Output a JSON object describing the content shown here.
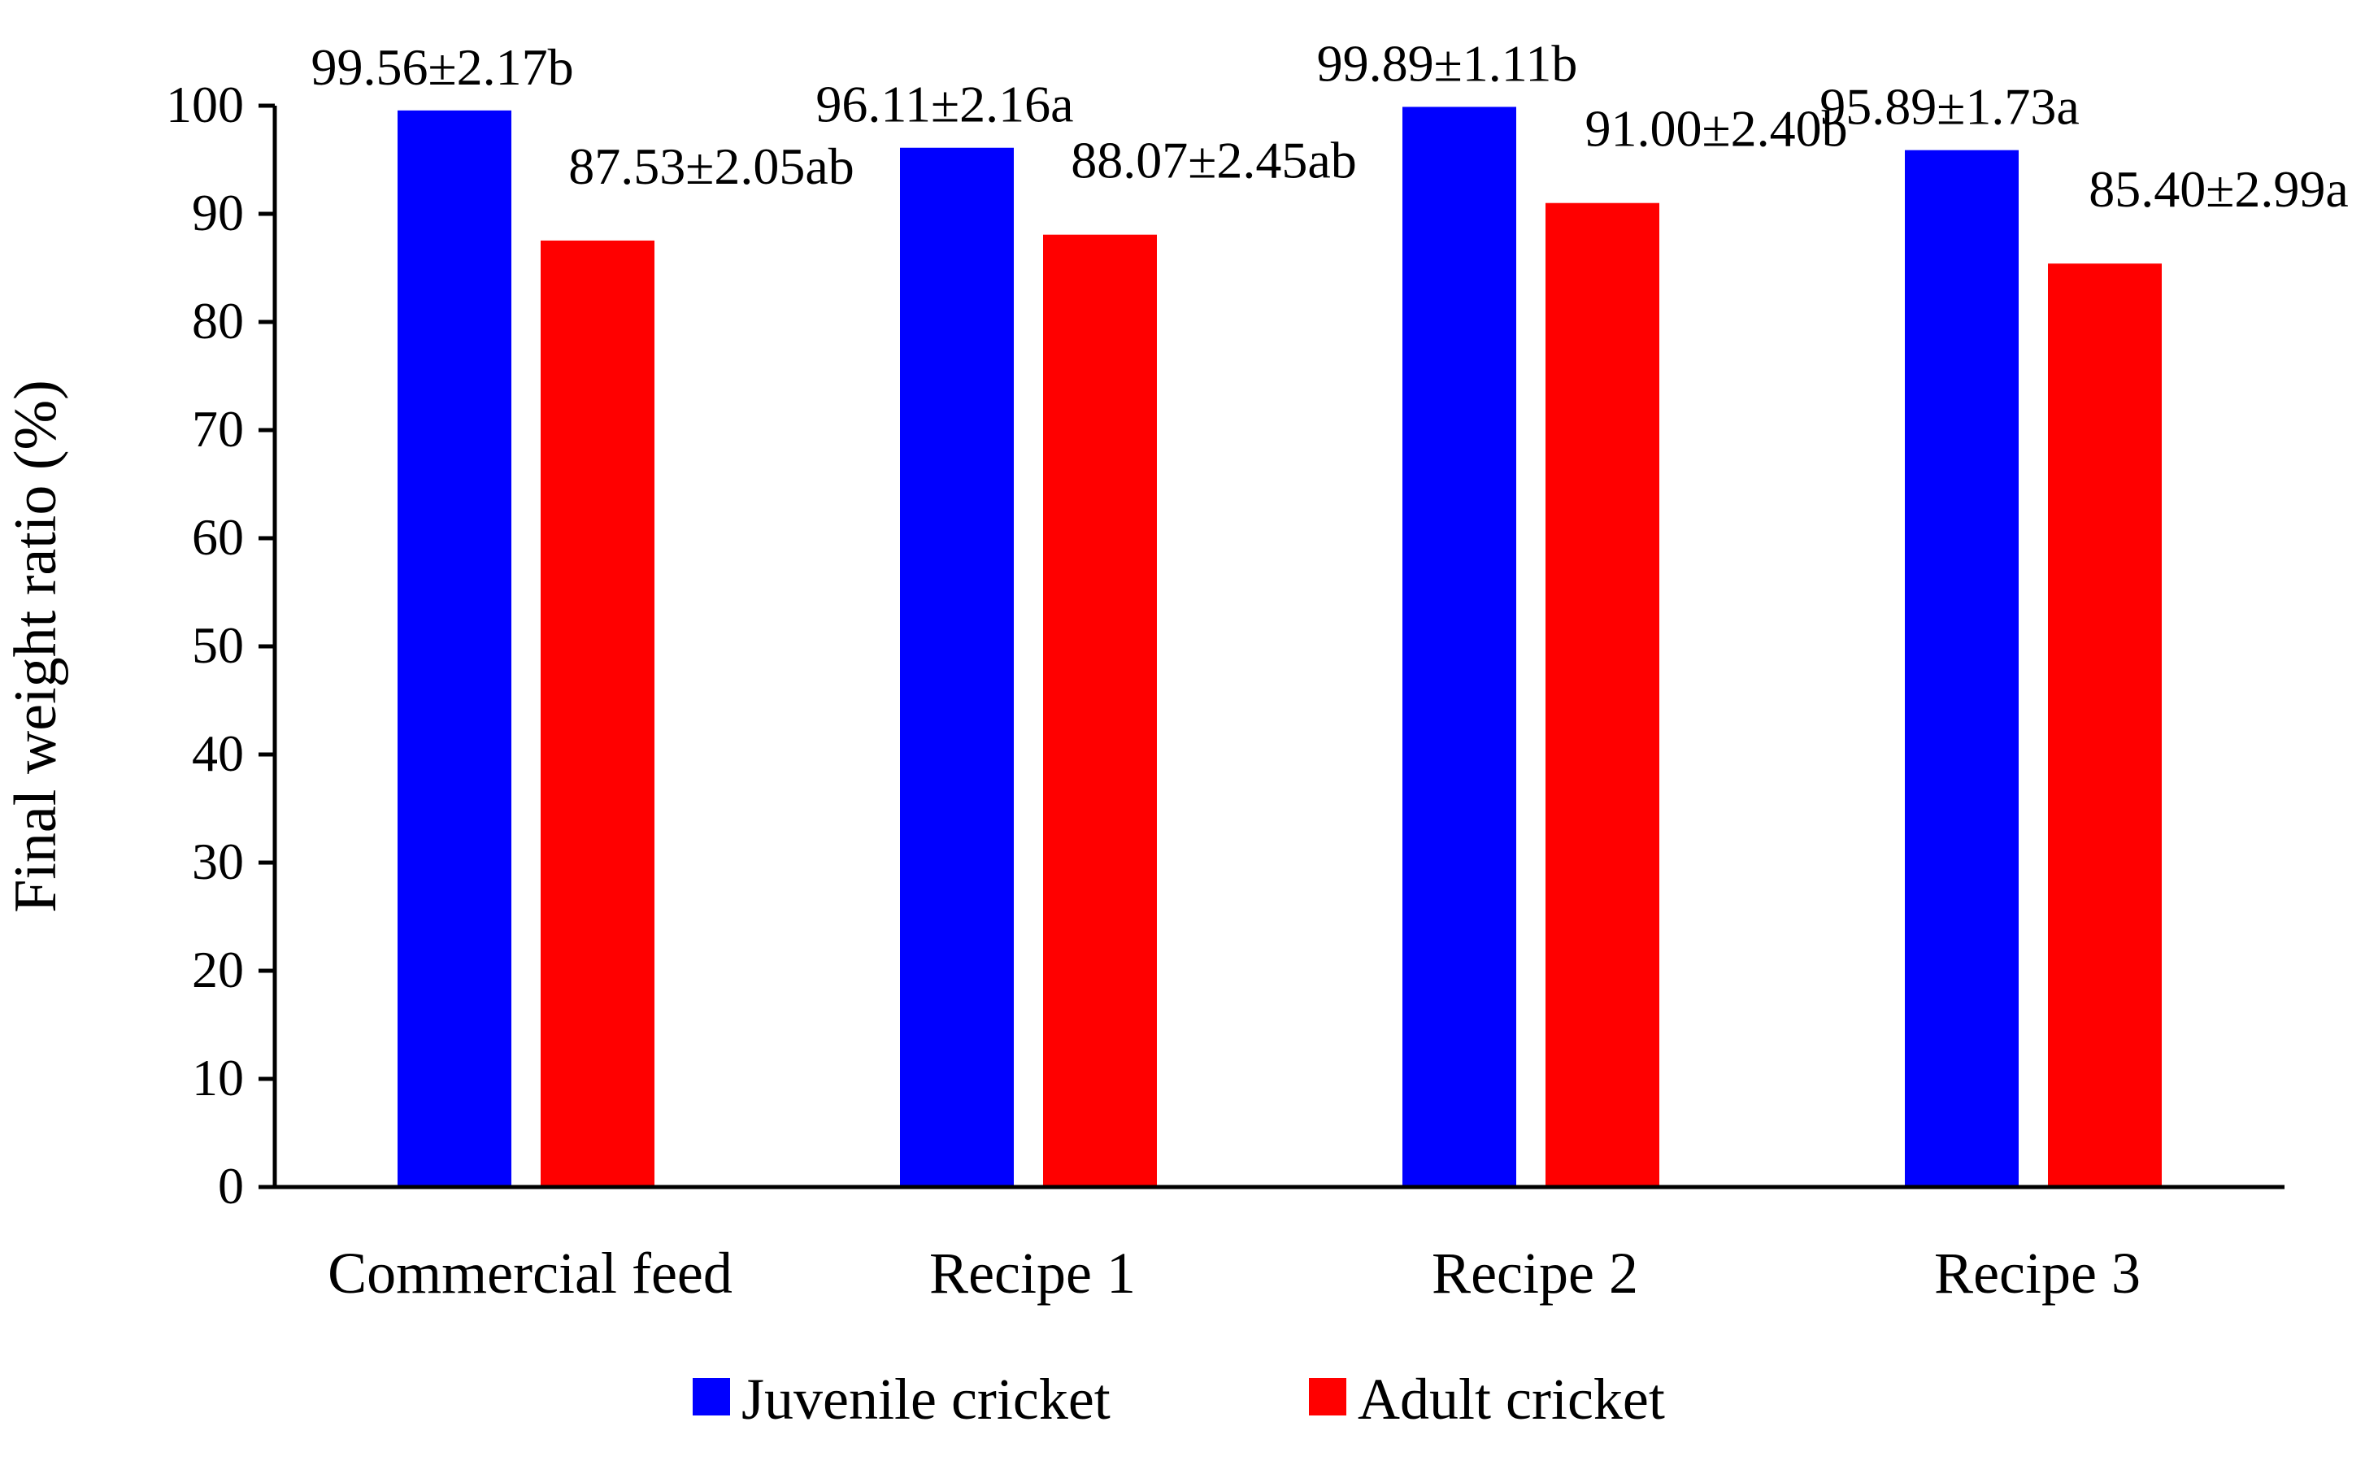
{
  "chart_data": {
    "type": "bar",
    "title": "",
    "xlabel": "",
    "ylabel": "Final weight ratio (%)",
    "ylim": [
      0,
      100
    ],
    "yticks": [
      0,
      10,
      20,
      30,
      40,
      50,
      60,
      70,
      80,
      90,
      100
    ],
    "categories": [
      "Commercial feed",
      "Recipe 1",
      "Recipe 2",
      "Recipe 3"
    ],
    "series": [
      {
        "name": "Juvenile cricket",
        "color": "#0000FF",
        "values": [
          99.56,
          96.11,
          99.89,
          95.89
        ],
        "labels": [
          "99.56±2.17b",
          "96.11±2.16a",
          "99.89±1.11b",
          "95.89±1.73a"
        ]
      },
      {
        "name": "Adult cricket",
        "color": "#FF0000",
        "values": [
          87.53,
          88.07,
          91.0,
          85.4
        ],
        "labels": [
          "87.53±2.05ab",
          "88.07±2.45ab",
          "91.00±2.40b",
          "85.40±2.99a"
        ]
      }
    ],
    "grid": false,
    "legend_position": "bottom"
  }
}
